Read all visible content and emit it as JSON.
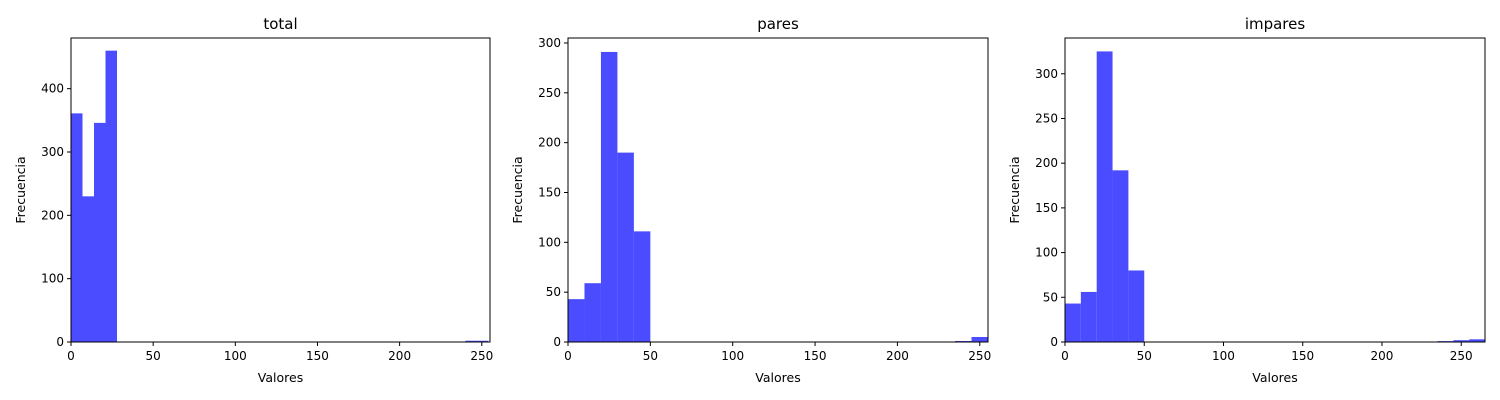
{
  "chart_data": [
    {
      "type": "bar",
      "title": "total",
      "xlabel": "Valores",
      "ylabel": "Frecuencia",
      "xlim": [
        0,
        255
      ],
      "ylim": [
        0,
        480
      ],
      "xticks": [
        0,
        50,
        100,
        150,
        200,
        250
      ],
      "yticks": [
        0,
        100,
        200,
        300,
        400
      ],
      "bar_color": "#4b4bff",
      "bins": [
        {
          "x0": 0,
          "x1": 7,
          "value": 361
        },
        {
          "x0": 7,
          "x1": 14,
          "value": 230
        },
        {
          "x0": 14,
          "x1": 21,
          "value": 346
        },
        {
          "x0": 21,
          "x1": 28,
          "value": 460
        },
        {
          "x0": 233,
          "x1": 240,
          "value": 0
        },
        {
          "x0": 240,
          "x1": 247,
          "value": 2
        },
        {
          "x0": 247,
          "x1": 254,
          "value": 2
        }
      ]
    },
    {
      "type": "bar",
      "title": "pares",
      "xlabel": "Valores",
      "ylabel": "Frecuencia",
      "xlim": [
        0,
        255
      ],
      "ylim": [
        0,
        305
      ],
      "xticks": [
        0,
        50,
        100,
        150,
        200,
        250
      ],
      "yticks": [
        0,
        50,
        100,
        150,
        200,
        250,
        300
      ],
      "bar_color": "#4b4bff",
      "bins": [
        {
          "x0": 0,
          "x1": 10,
          "value": 43
        },
        {
          "x0": 10,
          "x1": 20,
          "value": 59
        },
        {
          "x0": 20,
          "x1": 30,
          "value": 291
        },
        {
          "x0": 30,
          "x1": 40,
          "value": 190
        },
        {
          "x0": 40,
          "x1": 50,
          "value": 111
        },
        {
          "x0": 235,
          "x1": 245,
          "value": 1
        },
        {
          "x0": 245,
          "x1": 255,
          "value": 5
        }
      ]
    },
    {
      "type": "bar",
      "title": "impares",
      "xlabel": "Valores",
      "ylabel": "Frecuencia",
      "xlim": [
        0,
        265
      ],
      "ylim": [
        0,
        340
      ],
      "xticks": [
        0,
        50,
        100,
        150,
        200,
        250
      ],
      "yticks": [
        0,
        50,
        100,
        150,
        200,
        250,
        300
      ],
      "bar_color": "#4b4bff",
      "bins": [
        {
          "x0": 0,
          "x1": 10,
          "value": 43
        },
        {
          "x0": 10,
          "x1": 20,
          "value": 56
        },
        {
          "x0": 20,
          "x1": 30,
          "value": 325
        },
        {
          "x0": 30,
          "x1": 40,
          "value": 192
        },
        {
          "x0": 40,
          "x1": 50,
          "value": 80
        },
        {
          "x0": 235,
          "x1": 245,
          "value": 1
        },
        {
          "x0": 245,
          "x1": 255,
          "value": 2
        },
        {
          "x0": 255,
          "x1": 265,
          "value": 3
        }
      ]
    }
  ]
}
